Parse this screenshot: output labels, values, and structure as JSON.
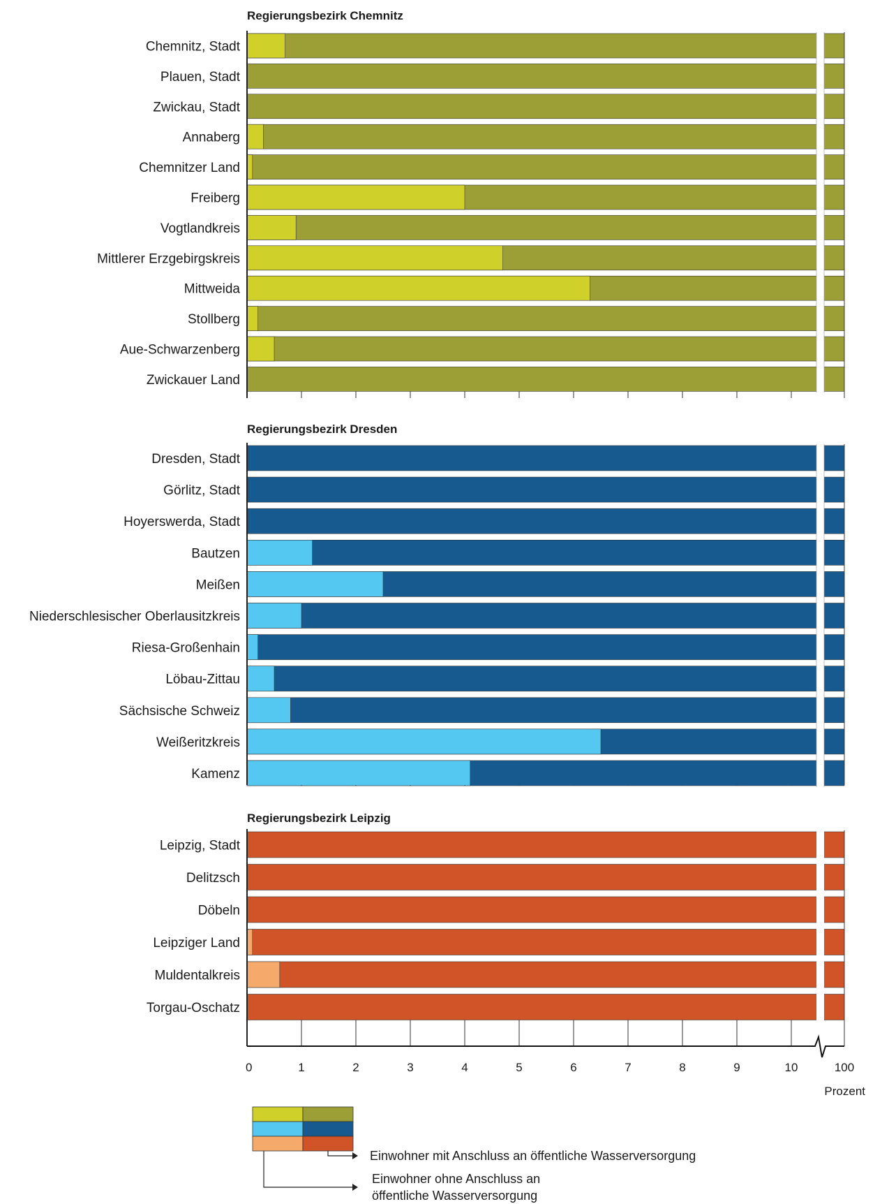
{
  "chart_data": {
    "type": "bar",
    "stacked": true,
    "orientation": "horizontal",
    "x_tick_labels": [
      "0",
      "1",
      "2",
      "3",
      "4",
      "5",
      "6",
      "7",
      "8",
      "9",
      "10",
      "100"
    ],
    "xlabel": "Prozent",
    "axis_break": "between 10 and 100",
    "legend": {
      "with_label": "Einwohner mit Anschluss an öffentliche Wasserversorgung",
      "without_label_line1": "Einwohner ohne Anschluss an",
      "without_label_line2": "öffentliche Wasserversorgung"
    },
    "panels": [
      {
        "title": "Regierungsbezirk Chemnitz",
        "colors": {
          "without": "#cfd02a",
          "with": "#9c9f36"
        },
        "categories": [
          "Chemnitz, Stadt",
          "Plauen, Stadt",
          "Zwickau, Stadt",
          "Annaberg",
          "Chemnitzer Land",
          "Freiberg",
          "Vogtlandkreis",
          "Mittlerer Erzgebirgskreis",
          "Mittweida",
          "Stollberg",
          "Aue-Schwarzenberg",
          "Zwickauer Land"
        ],
        "without_values": [
          0.7,
          0,
          0,
          0.3,
          0.1,
          4.0,
          0.9,
          4.7,
          6.3,
          0.2,
          0.5,
          0
        ]
      },
      {
        "title": "Regierungsbezirk Dresden",
        "colors": {
          "without": "#55c8f2",
          "with": "#175a8f"
        },
        "categories": [
          "Dresden, Stadt",
          "Görlitz, Stadt",
          "Hoyerswerda, Stadt",
          "Bautzen",
          "Meißen",
          "Niederschlesischer Oberlausitzkreis",
          "Riesa-Großenhain",
          "Löbau-Zittau",
          "Sächsische Schweiz",
          "Weißeritzkreis",
          "Kamenz"
        ],
        "without_values": [
          0,
          0,
          0,
          1.2,
          2.5,
          1.0,
          0.2,
          0.5,
          0.8,
          6.5,
          4.1
        ]
      },
      {
        "title": "Regierungsbezirk Leipzig",
        "colors": {
          "without": "#f5a96a",
          "with": "#d05428"
        },
        "categories": [
          "Leipzig, Stadt",
          "Delitzsch",
          "Döbeln",
          "Leipziger Land",
          "Muldentalkreis",
          "Torgau-Oschatz"
        ],
        "without_values": [
          0,
          0,
          0,
          0.1,
          0.6,
          0
        ]
      }
    ]
  }
}
